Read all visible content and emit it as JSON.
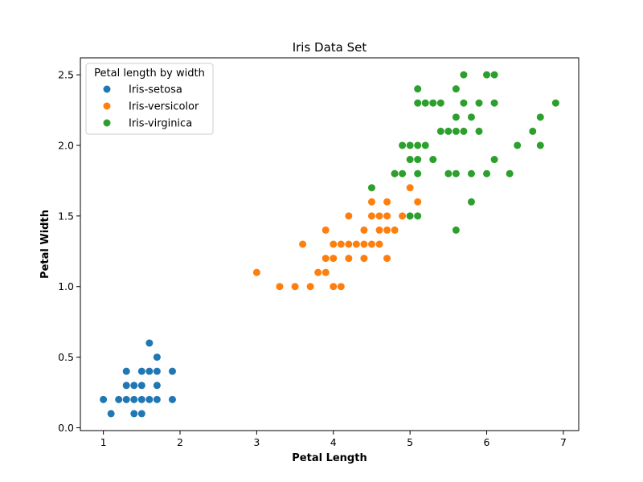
{
  "chart_data": {
    "type": "scatter",
    "title": "Iris Data Set",
    "xlabel": "Petal Length",
    "ylabel": "Petal Width",
    "xlim": [
      0.7,
      7.2
    ],
    "ylim": [
      -0.02,
      2.62
    ],
    "xticks": [
      1,
      2,
      3,
      4,
      5,
      6,
      7
    ],
    "xtick_labels": [
      "1",
      "2",
      "3",
      "4",
      "5",
      "6",
      "7"
    ],
    "yticks": [
      0.0,
      0.5,
      1.0,
      1.5,
      2.0,
      2.5
    ],
    "ytick_labels": [
      "0.0",
      "0.5",
      "1.0",
      "1.5",
      "2.0",
      "2.5"
    ],
    "grid": false,
    "legend": {
      "title": "Petal length by width",
      "position": "top-left"
    },
    "series": [
      {
        "name": "Iris-setosa",
        "color": "#1f77b4",
        "points": [
          [
            1.0,
            0.2
          ],
          [
            1.1,
            0.1
          ],
          [
            1.2,
            0.2
          ],
          [
            1.3,
            0.2
          ],
          [
            1.3,
            0.3
          ],
          [
            1.3,
            0.4
          ],
          [
            1.4,
            0.1
          ],
          [
            1.4,
            0.2
          ],
          [
            1.4,
            0.3
          ],
          [
            1.5,
            0.1
          ],
          [
            1.5,
            0.2
          ],
          [
            1.5,
            0.3
          ],
          [
            1.5,
            0.4
          ],
          [
            1.6,
            0.2
          ],
          [
            1.6,
            0.4
          ],
          [
            1.6,
            0.6
          ],
          [
            1.7,
            0.2
          ],
          [
            1.7,
            0.3
          ],
          [
            1.7,
            0.4
          ],
          [
            1.7,
            0.5
          ],
          [
            1.9,
            0.2
          ],
          [
            1.9,
            0.4
          ]
        ]
      },
      {
        "name": "Iris-versicolor",
        "color": "#ff7f0e",
        "points": [
          [
            3.0,
            1.1
          ],
          [
            3.3,
            1.0
          ],
          [
            3.5,
            1.0
          ],
          [
            3.6,
            1.3
          ],
          [
            3.7,
            1.0
          ],
          [
            3.8,
            1.1
          ],
          [
            3.9,
            1.1
          ],
          [
            3.9,
            1.2
          ],
          [
            3.9,
            1.4
          ],
          [
            4.0,
            1.0
          ],
          [
            4.0,
            1.2
          ],
          [
            4.0,
            1.3
          ],
          [
            4.1,
            1.0
          ],
          [
            4.1,
            1.3
          ],
          [
            4.2,
            1.2
          ],
          [
            4.2,
            1.3
          ],
          [
            4.2,
            1.5
          ],
          [
            4.3,
            1.3
          ],
          [
            4.4,
            1.2
          ],
          [
            4.4,
            1.3
          ],
          [
            4.4,
            1.4
          ],
          [
            4.5,
            1.3
          ],
          [
            4.5,
            1.5
          ],
          [
            4.5,
            1.6
          ],
          [
            4.6,
            1.3
          ],
          [
            4.6,
            1.4
          ],
          [
            4.6,
            1.5
          ],
          [
            4.7,
            1.2
          ],
          [
            4.7,
            1.4
          ],
          [
            4.7,
            1.5
          ],
          [
            4.7,
            1.6
          ],
          [
            4.8,
            1.4
          ],
          [
            4.8,
            1.8
          ],
          [
            4.9,
            1.5
          ],
          [
            5.0,
            1.7
          ],
          [
            5.1,
            1.6
          ]
        ]
      },
      {
        "name": "Iris-virginica",
        "color": "#2ca02c",
        "points": [
          [
            4.5,
            1.7
          ],
          [
            4.8,
            1.8
          ],
          [
            4.9,
            1.8
          ],
          [
            4.9,
            2.0
          ],
          [
            5.0,
            1.5
          ],
          [
            5.0,
            1.9
          ],
          [
            5.0,
            2.0
          ],
          [
            5.1,
            1.5
          ],
          [
            5.1,
            1.8
          ],
          [
            5.1,
            1.9
          ],
          [
            5.1,
            2.0
          ],
          [
            5.1,
            2.3
          ],
          [
            5.1,
            2.4
          ],
          [
            5.2,
            2.0
          ],
          [
            5.2,
            2.3
          ],
          [
            5.3,
            1.9
          ],
          [
            5.3,
            2.3
          ],
          [
            5.4,
            2.1
          ],
          [
            5.4,
            2.3
          ],
          [
            5.5,
            1.8
          ],
          [
            5.5,
            2.1
          ],
          [
            5.6,
            1.4
          ],
          [
            5.6,
            1.8
          ],
          [
            5.6,
            2.1
          ],
          [
            5.6,
            2.2
          ],
          [
            5.6,
            2.4
          ],
          [
            5.7,
            2.1
          ],
          [
            5.7,
            2.3
          ],
          [
            5.7,
            2.5
          ],
          [
            5.8,
            1.6
          ],
          [
            5.8,
            1.8
          ],
          [
            5.8,
            2.2
          ],
          [
            5.9,
            2.1
          ],
          [
            5.9,
            2.3
          ],
          [
            6.0,
            1.8
          ],
          [
            6.0,
            2.5
          ],
          [
            6.1,
            1.9
          ],
          [
            6.1,
            2.3
          ],
          [
            6.1,
            2.5
          ],
          [
            6.3,
            1.8
          ],
          [
            6.4,
            2.0
          ],
          [
            6.6,
            2.1
          ],
          [
            6.7,
            2.0
          ],
          [
            6.7,
            2.2
          ],
          [
            6.9,
            2.3
          ]
        ]
      }
    ]
  }
}
